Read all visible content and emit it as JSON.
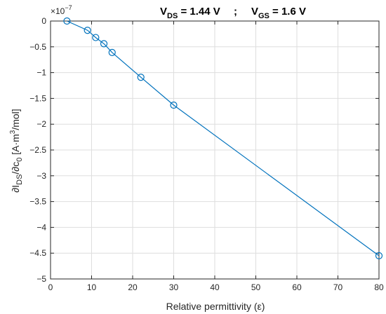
{
  "chart_data": {
    "type": "line",
    "title": {
      "vds_prefix": "V",
      "vds_sub": "DS",
      "vds_value": " = 1.44 V",
      "separator": ";",
      "vgs_prefix": "V",
      "vgs_sub": "GS",
      "vgs_value": " = 1.6 V"
    },
    "xlabel": "Relative permittivity (ε)",
    "ylabel": {
      "part1": "∂I",
      "sub1": "DS",
      "part2": "/∂c",
      "sub2": "0",
      "part3": " [A·m",
      "sup": "3",
      "part4": "/mol]"
    },
    "y_exponent": {
      "base": "×10",
      "power": "−7"
    },
    "xlim": [
      0,
      80
    ],
    "ylim": [
      -5,
      0
    ],
    "xticks": [
      0,
      10,
      20,
      30,
      40,
      50,
      60,
      70,
      80
    ],
    "yticks": [
      0,
      -0.5,
      -1,
      -1.5,
      -2,
      -2.5,
      -3,
      -3.5,
      -4,
      -4.5,
      -5
    ],
    "grid": true,
    "series": [
      {
        "color": "#0072bd",
        "marker": "circle",
        "x": [
          4,
          9,
          11,
          13,
          15,
          22,
          30,
          80
        ],
        "y": [
          0,
          -0.18,
          -0.32,
          -0.44,
          -0.61,
          -1.09,
          -1.63,
          -4.55
        ]
      }
    ]
  }
}
